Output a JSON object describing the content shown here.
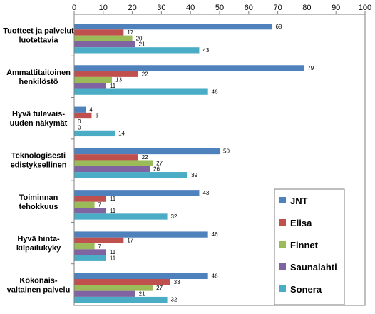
{
  "chart_data": {
    "type": "bar",
    "orientation": "horizontal",
    "title": "",
    "xlabel": "",
    "ylabel": "",
    "xlim": [
      0,
      100
    ],
    "x_ticks": [
      0,
      10,
      20,
      30,
      40,
      50,
      60,
      70,
      80,
      90,
      100
    ],
    "axis_position": "top",
    "grid": false,
    "legend_position": "bottom-right",
    "categories": [
      [
        "Tuotteet ja palvelut",
        "luotettavia"
      ],
      [
        "Ammattitaitoinen",
        "henkilöstö"
      ],
      [
        "Hyvä tulevais-",
        "uuden näkymät"
      ],
      [
        "Teknologisesti",
        "edistyksellinen"
      ],
      [
        "Toiminnan",
        "tehokkuus"
      ],
      [
        "Hyvä hinta-",
        "kilpailukyky"
      ],
      [
        "Kokonais-",
        "valtainen palvelu"
      ]
    ],
    "series": [
      {
        "name": "JNT",
        "color": "#4F81BD",
        "values": [
          68,
          79,
          4,
          50,
          43,
          46,
          46
        ]
      },
      {
        "name": "Elisa",
        "color": "#C0504D",
        "values": [
          17,
          22,
          6,
          22,
          11,
          17,
          33
        ]
      },
      {
        "name": "Finnet",
        "color": "#9BBB59",
        "values": [
          20,
          13,
          0,
          27,
          7,
          7,
          27
        ]
      },
      {
        "name": "Saunalahti",
        "color": "#8064A2",
        "values": [
          21,
          11,
          0,
          26,
          11,
          11,
          21
        ]
      },
      {
        "name": "Sonera",
        "color": "#4BACC6",
        "values": [
          43,
          46,
          14,
          39,
          32,
          11,
          32
        ]
      }
    ]
  }
}
